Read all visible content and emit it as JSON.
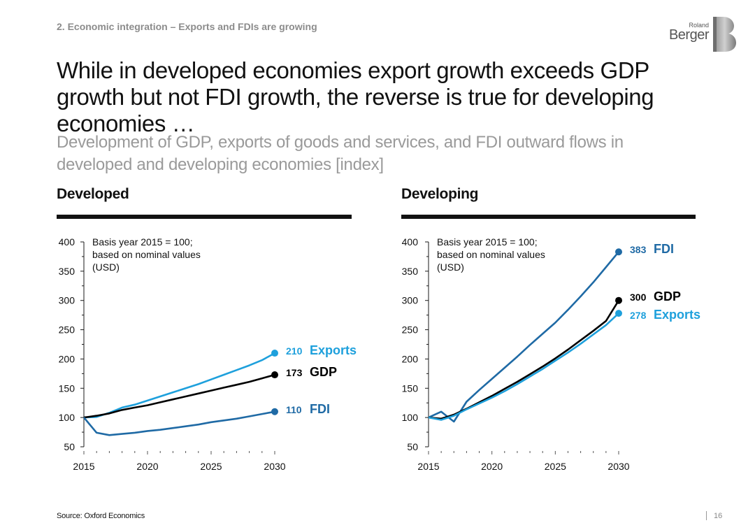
{
  "header": {
    "kicker": "2. Economic integration – Exports and FDIs are growing",
    "logo": {
      "line1": "Roland",
      "line2": "Berger"
    }
  },
  "title": "While in developed economies export growth exceeds GDP growth but not FDI growth, the reverse is true for developing economies …",
  "subtitle": "Development of GDP, exports of goods and services, and FDI outward flows in developed and developing economies [index]",
  "colors": {
    "gdp": "#000000",
    "exports": "#1ea0dc",
    "fdi": "#1f6aa5",
    "axis": "#1a1a1a"
  },
  "chart_data": [
    {
      "type": "line",
      "title": "Developed",
      "note": [
        "Basis year 2015 = 100;",
        "based on nominal values",
        "(USD)"
      ],
      "x": [
        2015,
        2016,
        2017,
        2018,
        2019,
        2020,
        2021,
        2022,
        2023,
        2024,
        2025,
        2026,
        2027,
        2028,
        2029,
        2030
      ],
      "xticks": [
        "2015",
        "2020",
        "2025",
        "2030"
      ],
      "ylim": [
        50,
        400
      ],
      "yticks": [
        "50",
        "100",
        "150",
        "200",
        "250",
        "300",
        "350",
        "400"
      ],
      "series": [
        {
          "name": "Exports",
          "key": "exports",
          "end_label": "210",
          "values": [
            100,
            101,
            108,
            117,
            122,
            129,
            136,
            143,
            150,
            157,
            165,
            173,
            181,
            189,
            198,
            210
          ]
        },
        {
          "name": "GDP",
          "key": "gdp",
          "end_label": "173",
          "values": [
            100,
            103,
            107,
            113,
            117,
            121,
            126,
            131,
            136,
            141,
            146,
            151,
            156,
            161,
            167,
            173
          ]
        },
        {
          "name": "FDI",
          "key": "fdi",
          "end_label": "110",
          "values": [
            100,
            74,
            70,
            72,
            74,
            77,
            79,
            82,
            85,
            88,
            92,
            95,
            98,
            102,
            106,
            110
          ]
        }
      ]
    },
    {
      "type": "line",
      "title": "Developing",
      "note": [
        "Basis year 2015 = 100;",
        "based on nominal values",
        "(USD)"
      ],
      "x": [
        2015,
        2016,
        2017,
        2018,
        2019,
        2020,
        2021,
        2022,
        2023,
        2024,
        2025,
        2026,
        2027,
        2028,
        2029,
        2030
      ],
      "xticks": [
        "2015",
        "2020",
        "2025",
        "2030"
      ],
      "ylim": [
        50,
        400
      ],
      "yticks": [
        "50",
        "100",
        "150",
        "200",
        "250",
        "300",
        "350",
        "400"
      ],
      "series": [
        {
          "name": "FDI",
          "key": "fdi",
          "end_label": "383",
          "values": [
            100,
            110,
            93,
            127,
            147,
            166,
            185,
            204,
            224,
            243,
            262,
            284,
            307,
            331,
            357,
            383
          ]
        },
        {
          "name": "GDP",
          "key": "gdp",
          "end_label": "300",
          "values": [
            100,
            98,
            105,
            115,
            126,
            137,
            149,
            161,
            174,
            187,
            201,
            216,
            232,
            248,
            265,
            300
          ]
        },
        {
          "name": "Exports",
          "key": "exports",
          "end_label": "278",
          "values": [
            100,
            96,
            103,
            114,
            124,
            134,
            145,
            157,
            170,
            183,
            197,
            211,
            226,
            242,
            258,
            278
          ]
        }
      ]
    }
  ],
  "footer": {
    "source": "Source: Oxford Economics",
    "page": "16"
  }
}
